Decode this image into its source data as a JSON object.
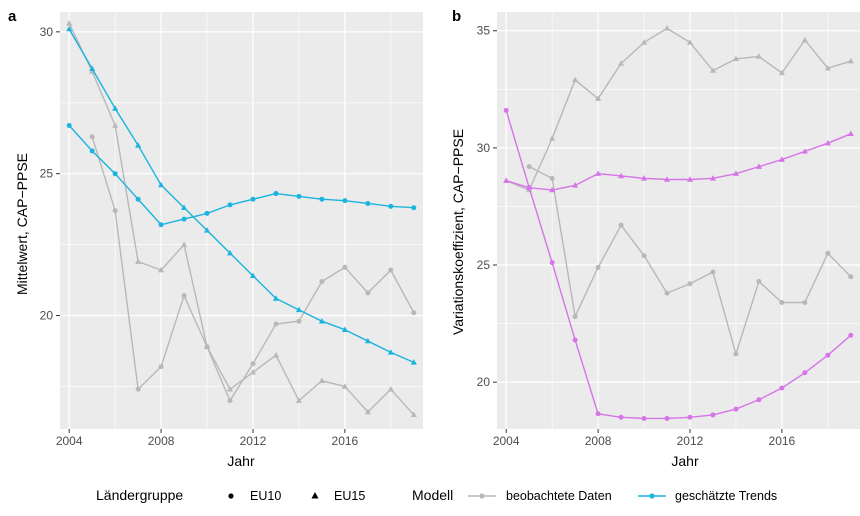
{
  "colors": {
    "observed": "#b8b8b8",
    "trend_a": "#1ab4df",
    "trend_b": "#d674e8",
    "panel_bg": "#ebebeb",
    "grid": "#ffffff"
  },
  "chart_data": [
    {
      "panel": "a",
      "type": "line",
      "xlabel": "Jahr",
      "ylabel": "Mittelwert, CAP−PPSE",
      "xlim": [
        2003.6,
        2019.4
      ],
      "ylim": [
        16.0,
        30.7
      ],
      "xticks": [
        2004,
        2008,
        2012,
        2016
      ],
      "yticks": [
        20,
        25,
        30
      ],
      "grid": true,
      "x": [
        2004,
        2005,
        2006,
        2007,
        2008,
        2009,
        2010,
        2011,
        2012,
        2013,
        2014,
        2015,
        2016,
        2017,
        2018,
        2019
      ],
      "series": [
        {
          "group": "EU10",
          "model": "beobachtete Daten",
          "values": [
            null,
            26.3,
            23.7,
            17.4,
            18.2,
            20.7,
            18.9,
            17.0,
            18.3,
            19.7,
            19.8,
            21.2,
            21.7,
            20.8,
            21.6,
            20.1
          ]
        },
        {
          "group": "EU15",
          "model": "beobachtete Daten",
          "values": [
            30.3,
            28.6,
            26.7,
            21.9,
            21.6,
            22.5,
            18.9,
            17.4,
            18.0,
            18.6,
            17.0,
            17.7,
            17.5,
            16.6,
            17.4,
            16.5
          ]
        },
        {
          "group": "EU10",
          "model": "geschätzte Trends",
          "values": [
            26.7,
            25.8,
            25.0,
            24.1,
            23.2,
            23.4,
            23.6,
            23.9,
            24.1,
            24.3,
            24.2,
            24.1,
            24.05,
            23.95,
            23.85,
            23.8
          ]
        },
        {
          "group": "EU15",
          "model": "geschätzte Trends",
          "values": [
            30.1,
            28.7,
            27.3,
            26.0,
            24.6,
            23.8,
            23.0,
            22.2,
            21.4,
            20.6,
            20.2,
            19.8,
            19.5,
            19.1,
            18.7,
            18.35
          ]
        }
      ]
    },
    {
      "panel": "b",
      "type": "line",
      "xlabel": "Jahr",
      "ylabel": "Variationskoeffizient, CAP−PPSE",
      "xlim": [
        2003.6,
        2019.4
      ],
      "ylim": [
        18.0,
        35.8
      ],
      "xticks": [
        2004,
        2008,
        2012,
        2016
      ],
      "yticks": [
        20,
        25,
        30,
        35
      ],
      "grid": true,
      "x": [
        2004,
        2005,
        2006,
        2007,
        2008,
        2009,
        2010,
        2011,
        2012,
        2013,
        2014,
        2015,
        2016,
        2017,
        2018,
        2019
      ],
      "series": [
        {
          "group": "EU10",
          "model": "beobachtete Daten",
          "values": [
            null,
            29.2,
            28.7,
            22.8,
            24.9,
            26.7,
            25.4,
            23.8,
            24.2,
            24.7,
            21.2,
            24.3,
            23.4,
            23.4,
            25.5,
            24.5
          ]
        },
        {
          "group": "EU15",
          "model": "beobachtete Daten",
          "values": [
            28.6,
            28.2,
            30.4,
            32.9,
            32.1,
            33.6,
            34.5,
            35.1,
            34.5,
            33.3,
            33.8,
            33.9,
            33.2,
            34.6,
            33.4,
            33.7
          ]
        },
        {
          "group": "EU10",
          "model": "geschätzte Trends",
          "values": [
            31.6,
            28.3,
            25.1,
            21.8,
            18.65,
            18.5,
            18.45,
            18.45,
            18.5,
            18.6,
            18.85,
            19.25,
            19.75,
            20.4,
            21.15,
            22.0
          ]
        },
        {
          "group": "EU15",
          "model": "geschätzte Trends",
          "values": [
            28.6,
            28.3,
            28.2,
            28.4,
            28.9,
            28.8,
            28.7,
            28.65,
            28.65,
            28.7,
            28.9,
            29.2,
            29.5,
            29.85,
            30.2,
            30.6
          ]
        }
      ]
    }
  ],
  "legend": {
    "group_title": "Ländergruppe",
    "group_items": [
      "EU10",
      "EU15"
    ],
    "model_title": "Modell",
    "model_items": [
      "beobachtete Daten",
      "geschätzte Trends"
    ]
  }
}
